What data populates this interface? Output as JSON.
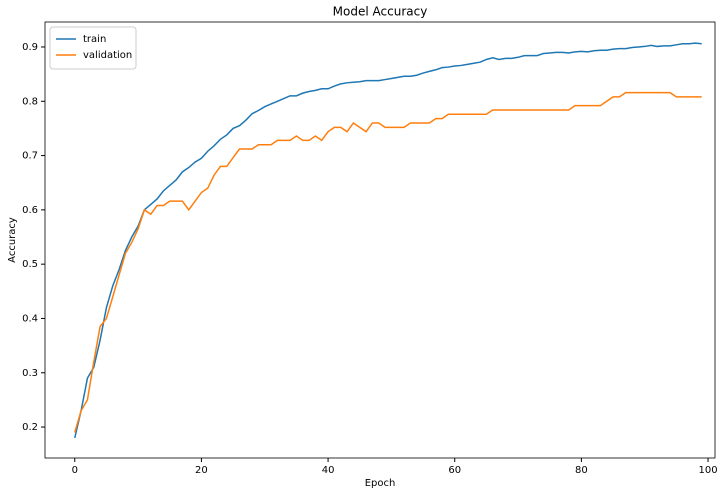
{
  "chart_data": {
    "type": "line",
    "title": "Model Accuracy",
    "x_label": "Epoch",
    "y_label": "Accuracy",
    "x": [
      0,
      1,
      2,
      3,
      4,
      5,
      6,
      7,
      8,
      9,
      10,
      11,
      12,
      13,
      14,
      15,
      16,
      17,
      18,
      19,
      20,
      21,
      22,
      23,
      24,
      25,
      26,
      27,
      28,
      29,
      30,
      31,
      32,
      33,
      34,
      35,
      36,
      37,
      38,
      39,
      40,
      41,
      42,
      43,
      44,
      45,
      46,
      47,
      48,
      49,
      50,
      51,
      52,
      53,
      54,
      55,
      56,
      57,
      58,
      59,
      60,
      61,
      62,
      63,
      64,
      65,
      66,
      67,
      68,
      69,
      70,
      71,
      72,
      73,
      74,
      75,
      76,
      77,
      78,
      79,
      80,
      81,
      82,
      83,
      84,
      85,
      86,
      87,
      88,
      89,
      90,
      91,
      92,
      93,
      94,
      95,
      96,
      97,
      98,
      99
    ],
    "series": [
      {
        "name": "train",
        "color": "#1f77b4",
        "values": [
          0.18,
          0.23,
          0.29,
          0.31,
          0.36,
          0.42,
          0.46,
          0.49,
          0.525,
          0.55,
          0.57,
          0.6,
          0.61,
          0.62,
          0.635,
          0.645,
          0.655,
          0.67,
          0.678,
          0.688,
          0.695,
          0.708,
          0.718,
          0.73,
          0.738,
          0.75,
          0.755,
          0.765,
          0.777,
          0.783,
          0.79,
          0.795,
          0.8,
          0.805,
          0.81,
          0.81,
          0.815,
          0.818,
          0.82,
          0.823,
          0.823,
          0.828,
          0.832,
          0.834,
          0.835,
          0.836,
          0.838,
          0.838,
          0.838,
          0.84,
          0.842,
          0.844,
          0.846,
          0.846,
          0.848,
          0.852,
          0.855,
          0.858,
          0.862,
          0.863,
          0.865,
          0.866,
          0.868,
          0.87,
          0.872,
          0.877,
          0.88,
          0.877,
          0.879,
          0.879,
          0.881,
          0.884,
          0.884,
          0.884,
          0.888,
          0.889,
          0.89,
          0.89,
          0.889,
          0.891,
          0.892,
          0.891,
          0.893,
          0.894,
          0.894,
          0.896,
          0.897,
          0.897,
          0.899,
          0.9,
          0.901,
          0.903,
          0.901,
          0.902,
          0.902,
          0.904,
          0.906,
          0.906,
          0.907,
          0.906
        ]
      },
      {
        "name": "validation",
        "color": "#ff7f0e",
        "values": [
          0.19,
          0.23,
          0.25,
          0.32,
          0.385,
          0.4,
          0.44,
          0.48,
          0.52,
          0.54,
          0.565,
          0.6,
          0.592,
          0.608,
          0.608,
          0.616,
          0.616,
          0.616,
          0.6,
          0.616,
          0.632,
          0.64,
          0.664,
          0.68,
          0.68,
          0.696,
          0.712,
          0.712,
          0.712,
          0.72,
          0.72,
          0.72,
          0.728,
          0.728,
          0.728,
          0.736,
          0.728,
          0.728,
          0.736,
          0.728,
          0.744,
          0.752,
          0.752,
          0.744,
          0.76,
          0.752,
          0.744,
          0.76,
          0.76,
          0.752,
          0.752,
          0.752,
          0.752,
          0.76,
          0.76,
          0.76,
          0.76,
          0.768,
          0.768,
          0.776,
          0.776,
          0.776,
          0.776,
          0.776,
          0.776,
          0.776,
          0.784,
          0.784,
          0.784,
          0.784,
          0.784,
          0.784,
          0.784,
          0.784,
          0.784,
          0.784,
          0.784,
          0.784,
          0.784,
          0.792,
          0.792,
          0.792,
          0.792,
          0.792,
          0.8,
          0.808,
          0.808,
          0.816,
          0.816,
          0.816,
          0.816,
          0.816,
          0.816,
          0.816,
          0.816,
          0.808,
          0.808,
          0.808,
          0.808,
          0.808
        ]
      }
    ],
    "xlim": [
      -4.7,
      101.1
    ],
    "ylim": [
      0.143,
      0.946
    ],
    "xticks": [
      0,
      20,
      40,
      60,
      80,
      100
    ],
    "yticks": [
      0.2,
      0.3,
      0.4,
      0.5,
      0.6,
      0.7,
      0.8,
      0.9
    ],
    "legend": "upper left"
  }
}
